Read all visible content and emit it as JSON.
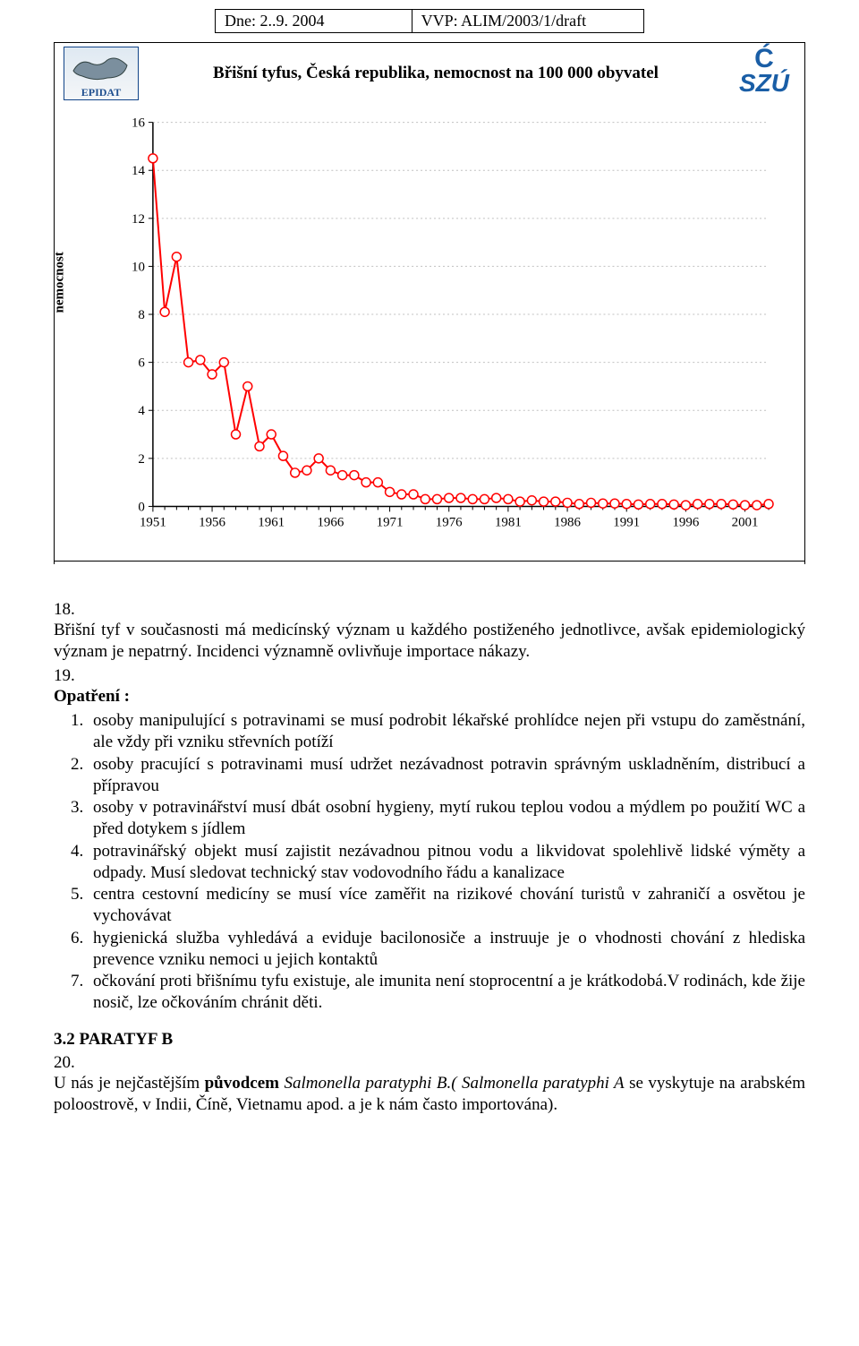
{
  "header": {
    "date_label": "Dne: 2..9. 2004",
    "ref_label": "VVP: ALIM/2003/1/draft"
  },
  "chart": {
    "type": "line",
    "title": "Břišní tyfus, Česká republika, nemocnost na 100 000 obyvatel",
    "ylabel": "nemocnost",
    "background_color": "#ffffff",
    "grid_color": "#c0c0c0",
    "axis_color": "#000000",
    "line_color": "#ff0000",
    "marker_stroke": "#ff0000",
    "marker_fill": "#ffffff",
    "marker_radius": 5,
    "line_width": 2,
    "ylim": [
      0,
      16
    ],
    "ytick_step": 2,
    "xlim": [
      1951,
      2003
    ],
    "xtick_step": 5,
    "title_fontsize": 19,
    "axis_fontsize": 15,
    "years": [
      1951,
      1952,
      1953,
      1954,
      1955,
      1956,
      1957,
      1958,
      1959,
      1960,
      1961,
      1962,
      1963,
      1964,
      1965,
      1966,
      1967,
      1968,
      1969,
      1970,
      1971,
      1972,
      1973,
      1974,
      1975,
      1976,
      1977,
      1978,
      1979,
      1980,
      1981,
      1982,
      1983,
      1984,
      1985,
      1986,
      1987,
      1988,
      1989,
      1990,
      1991,
      1992,
      1993,
      1994,
      1995,
      1996,
      1997,
      1998,
      1999,
      2000,
      2001,
      2002,
      2003
    ],
    "values": [
      14.5,
      8.1,
      10.4,
      6.0,
      6.1,
      5.5,
      6.0,
      3.0,
      5.0,
      2.5,
      3.0,
      2.1,
      1.4,
      1.5,
      2.0,
      1.5,
      1.3,
      1.3,
      1.0,
      1.0,
      0.6,
      0.5,
      0.5,
      0.3,
      0.3,
      0.35,
      0.35,
      0.3,
      0.3,
      0.35,
      0.3,
      0.2,
      0.25,
      0.2,
      0.2,
      0.15,
      0.1,
      0.15,
      0.12,
      0.12,
      0.1,
      0.08,
      0.1,
      0.1,
      0.08,
      0.05,
      0.1,
      0.1,
      0.1,
      0.08,
      0.05,
      0.05,
      0.1
    ],
    "logo_left_label": "EPIDAT",
    "logo_right_label": "SZÚ"
  },
  "section18": {
    "num": "18.",
    "text_prefix": "Břišní tyf v současnosti  má  medicínský význam u každého postiženého jednotlivce, avšak epidemiologický význam je nepatrný.  Incidenci  významně ovlivňuje importace nákazy."
  },
  "section19": {
    "num": "19.",
    "lead": "Opatření :",
    "items": [
      "osoby manipulující s potravinami se musí podrobit lékařské prohlídce nejen při vstupu do zaměstnání, ale vždy při vzniku střevních potíží",
      "osoby pracující s potravinami musí udržet nezávadnost potravin správným uskladněním, distribucí a přípravou",
      "osoby v potravinářství musí dbát osobní hygieny, mytí rukou teplou vodou a mýdlem po použití WC a před dotykem s jídlem",
      "potravinářský objekt musí zajistit nezávadnou pitnou vodu a likvidovat spolehlivě lidské výměty a odpady. Musí sledovat technický stav vodovodního řádu a kanalizace",
      "centra  cestovní medicíny se musí více zaměřit na rizikové chování turistů v zahraničí a osvětou je vychovávat",
      "hygienická služba vyhledává a eviduje bacilonosiče a instruuje je o vhodnosti chování z hlediska prevence vzniku nemoci u jejich kontaktů",
      "očkování proti břišnímu tyfu existuje, ale imunita není stoprocentní a je krátkodobá.V rodinách, kde žije nosič, lze očkováním chránit děti."
    ]
  },
  "section_paratyf": {
    "heading": "3.2  PARATYF B",
    "num": "20.",
    "text_before_em": "U nás je nejčastějším ",
    "em1": "původcem",
    "mid1": "   ",
    "it1": "Salmonella paratyphi B.( Salmonella paratyphi A",
    "rest": " se vyskytuje na arabském poloostrově, v Indii, Číně, Vietnamu apod.  a  je  k nám  často importována)."
  }
}
